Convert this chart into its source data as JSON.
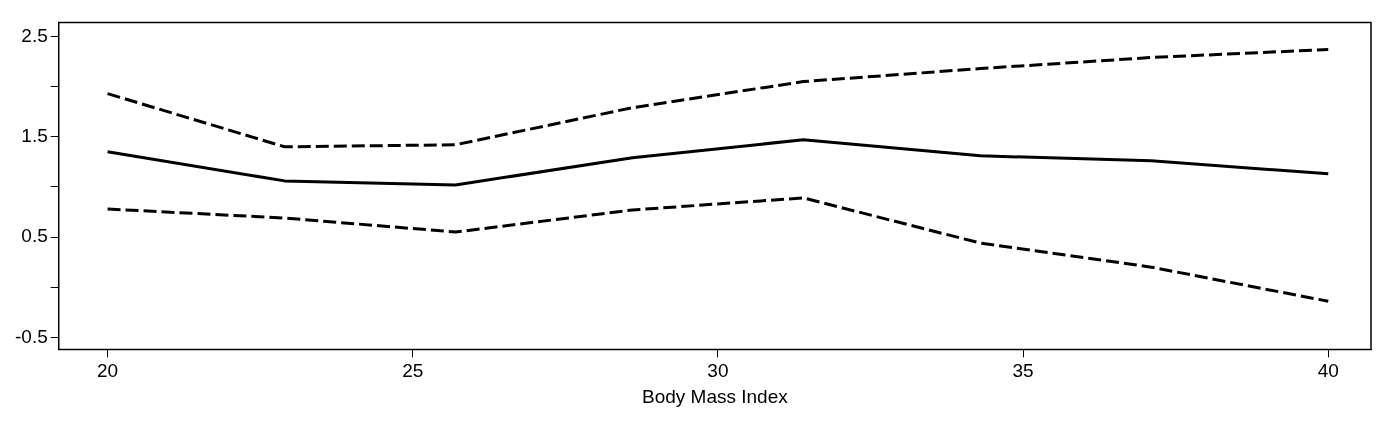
{
  "chart_data": {
    "type": "line",
    "xlabel": "Body Mass Index",
    "x": [
      20,
      22.9,
      25.7,
      28.6,
      31.4,
      34.3,
      37.1,
      40
    ],
    "xlim": [
      19.2,
      40.7
    ],
    "xticks": [
      20,
      25,
      30,
      35,
      40
    ],
    "ylim": [
      -0.62,
      2.64
    ],
    "yticks": [
      -0.5,
      {
        "value": 0,
        "label": null
      },
      0.5,
      {
        "value": 1,
        "label": null
      },
      1.5,
      {
        "value": 2,
        "label": null
      },
      2.5
    ],
    "grid": false,
    "legend": false,
    "marker": "none",
    "series": [
      {
        "color": "#000000",
        "line_style": "dashed",
        "values": [
          1.93,
          1.4,
          1.42,
          1.79,
          2.05,
          2.18,
          2.29,
          2.37
        ]
      },
      {
        "color": "#000000",
        "line_style": "solid",
        "values": [
          1.35,
          1.06,
          1.02,
          1.29,
          1.47,
          1.31,
          1.26,
          1.13
        ]
      },
      {
        "color": "#000000",
        "line_style": "dashed",
        "values": [
          0.78,
          0.69,
          0.55,
          0.77,
          0.89,
          0.44,
          0.2,
          -0.14
        ]
      }
    ]
  }
}
